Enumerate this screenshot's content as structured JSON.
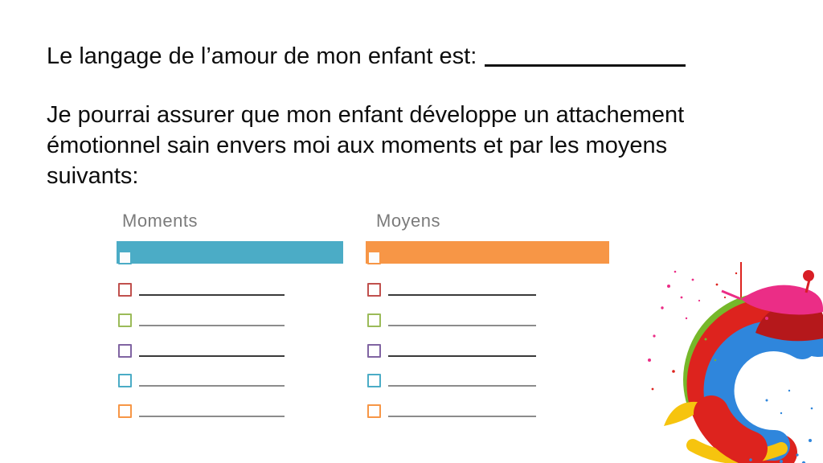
{
  "slide": {
    "title": "Le langage de l’amour de mon enfant est:",
    "title_blank": "_______________",
    "paragraph_lines": [
      "Je pourrai assurer que mon enfant développe un attachement",
      "émotionnel sain envers moi aux moments et par les moyens",
      "suivants:"
    ],
    "columns": [
      {
        "header": "Moments",
        "bar_color": "#4BACC6"
      },
      {
        "header": "Moyens",
        "bar_color": "#F79646"
      }
    ],
    "rows": [
      {
        "checkbox_color": "#C0504D",
        "line_color": "#3a3a3a"
      },
      {
        "checkbox_color": "#9BBB59",
        "line_color": "#8c8c8c"
      },
      {
        "checkbox_color": "#8064A2",
        "line_color": "#3a3a3a"
      },
      {
        "checkbox_color": "#4BACC6",
        "line_color": "#8c8c8c"
      },
      {
        "checkbox_color": "#F79646",
        "line_color": "#8c8c8c"
      }
    ],
    "header_color": "#7b7b7b",
    "text_color": "#0d0d0d"
  },
  "decoration": {
    "paint_splash": {
      "description": "colorful paint swirl photo, bottom right corner",
      "colors": {
        "red": "#DD231E",
        "dark_red": "#B5181B",
        "red_bright": "#D81E26",
        "green": "#76B82A",
        "green_light": "#8CC63F",
        "blue": "#2F86DC",
        "yellow": "#F6C40E",
        "pink": "#EB2D86"
      }
    }
  }
}
